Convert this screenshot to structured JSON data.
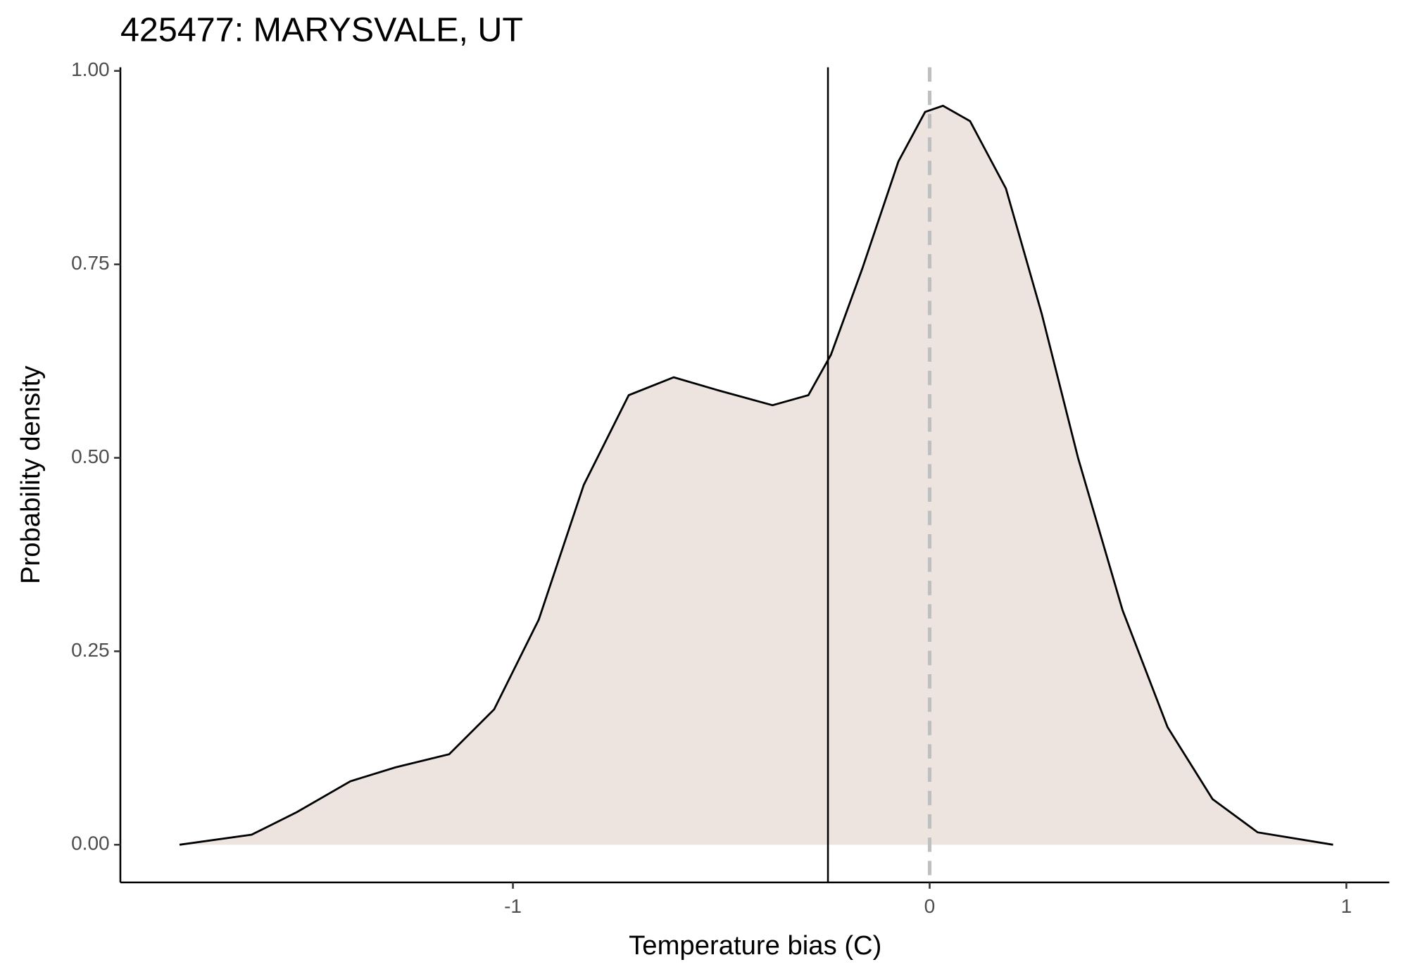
{
  "chart_data": {
    "type": "density",
    "title": "425477: MARYSVALE, UT",
    "x_label": "Temperature bias (C)",
    "y_label": "Probability density",
    "x": [
      -1.8,
      -1.627,
      -1.519,
      -1.39,
      -1.282,
      -1.153,
      -1.045,
      -0.938,
      -0.83,
      -0.722,
      -0.614,
      -0.506,
      -0.377,
      -0.291,
      -0.237,
      -0.162,
      -0.075,
      -0.011,
      0.032,
      0.097,
      0.183,
      0.269,
      0.356,
      0.463,
      0.571,
      0.679,
      0.787,
      0.968
    ],
    "values": [
      0,
      0.013,
      0.042,
      0.082,
      0.1,
      0.117,
      0.175,
      0.291,
      0.465,
      0.581,
      0.604,
      0.587,
      0.568,
      0.581,
      0.633,
      0.744,
      0.883,
      0.947,
      0.955,
      0.935,
      0.848,
      0.686,
      0.5,
      0.303,
      0.152,
      0.059,
      0.016,
      0
    ],
    "fill_color": "#ede3df",
    "line_color": "#000000",
    "vlines": [
      {
        "value": -0.244,
        "color": "#000000",
        "style": "solid"
      },
      {
        "value": 0,
        "color": "#bfbfbf",
        "style": "dashed"
      }
    ],
    "xlim": [
      -1.942,
      1.103
    ],
    "ylim": [
      -0.0487,
      1.0046
    ],
    "xticks": [
      -1,
      0,
      1
    ],
    "yticks": [
      {
        "value": 0,
        "label": "0.00"
      },
      {
        "value": 0.25,
        "label": "0.25"
      },
      {
        "value": 0.5,
        "label": "0.50"
      },
      {
        "value": 0.75,
        "label": "0.75"
      },
      {
        "value": 1,
        "label": "1.00"
      }
    ]
  }
}
